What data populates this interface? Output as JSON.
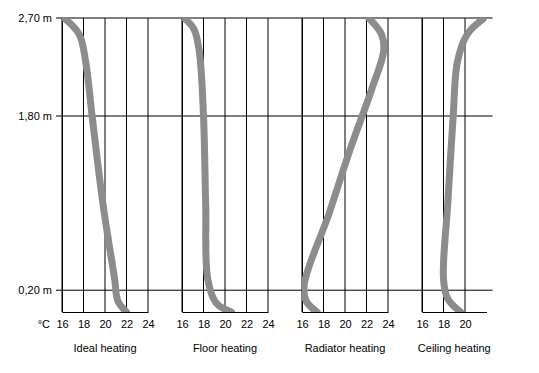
{
  "chart_data": [
    {
      "type": "line",
      "title": "Ideal heating",
      "x_label": "°C",
      "x": [
        22,
        21.2,
        20.9,
        19.8,
        18.8,
        18.2,
        17.6,
        16.2
      ],
      "values": [
        0,
        0.1,
        0.3,
        1.0,
        1.8,
        2.3,
        2.55,
        2.7
      ],
      "color": "#8c8c8c",
      "xlim": [
        16,
        24
      ],
      "xticks": [
        16,
        18,
        20,
        22,
        24
      ],
      "ylim": [
        0,
        2.7
      ],
      "yticks": [
        {
          "value": 0.2,
          "label": "0,20 m"
        },
        {
          "value": 1.8,
          "label": "1,80 m"
        },
        {
          "value": 2.7,
          "label": "2,70 m"
        }
      ],
      "grid": true
    },
    {
      "type": "line",
      "title": "Floor heating",
      "x": [
        20.6,
        19.2,
        18.4,
        18.2,
        18.0,
        17.6,
        17.1,
        16.2
      ],
      "values": [
        0,
        0.08,
        0.3,
        1.0,
        1.8,
        2.4,
        2.6,
        2.7
      ],
      "color": "#8c8c8c",
      "xlim": [
        16,
        24
      ],
      "xticks": [
        16,
        18,
        20,
        22,
        24
      ],
      "ylim": [
        0,
        2.7
      ],
      "yticks": [
        {
          "value": 0.2,
          "label": "0,20 m"
        },
        {
          "value": 1.8,
          "label": "1,80 m"
        },
        {
          "value": 2.7,
          "label": "2,70 m"
        }
      ],
      "grid": true,
      "tick_labels": "x"
    },
    {
      "type": "line",
      "title": "Radiator heating",
      "x": [
        17.4,
        16.4,
        16.2,
        18.5,
        20.5,
        22.5,
        23.6,
        23.4,
        22.2
      ],
      "values": [
        0,
        0.1,
        0.25,
        0.9,
        1.5,
        2.05,
        2.4,
        2.55,
        2.7
      ],
      "color": "#8c8c8c",
      "xlim": [
        16,
        24
      ],
      "xticks": [
        16,
        18,
        20,
        22,
        24
      ],
      "ylim": [
        0,
        2.7
      ],
      "yticks": [
        {
          "value": 0.2,
          "label": "0,20 m"
        },
        {
          "value": 1.8,
          "label": "1,80 m"
        },
        {
          "value": 2.7,
          "label": "2,70 m"
        }
      ],
      "grid": true,
      "tick_labels": "x"
    },
    {
      "type": "line",
      "title": "Ceiling heating",
      "x": [
        19.6,
        18.4,
        18.0,
        18.4,
        18.9,
        19.3,
        20.2,
        21.8
      ],
      "values": [
        0,
        0.12,
        0.3,
        1.0,
        1.8,
        2.3,
        2.55,
        2.7
      ],
      "color": "#8c8c8c",
      "xlim": [
        16,
        22
      ],
      "xticks": [
        16,
        18,
        20
      ],
      "ylim": [
        0,
        2.7
      ],
      "yticks": [
        {
          "value": 0.2,
          "label": "0,20 m"
        },
        {
          "value": 1.8,
          "label": "1,80 m"
        },
        {
          "value": 2.7,
          "label": "2,70 m"
        }
      ],
      "grid": true,
      "tick_labels": "x"
    }
  ]
}
